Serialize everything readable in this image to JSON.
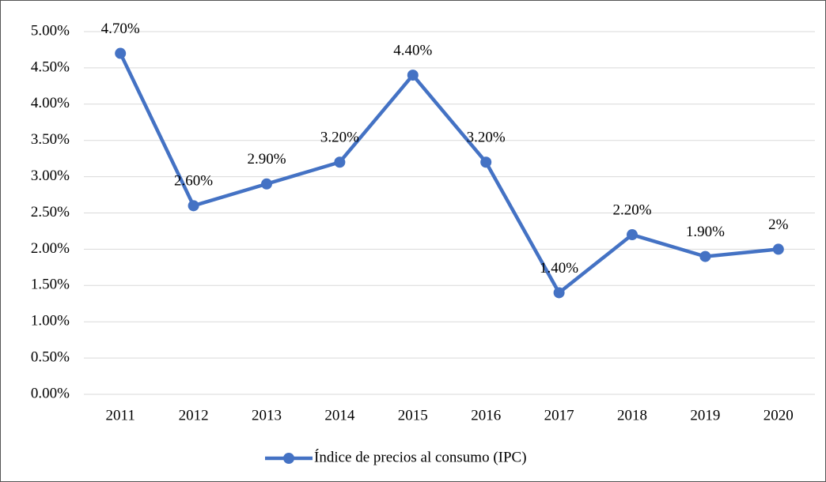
{
  "chart_data": {
    "type": "line",
    "categories": [
      "2011",
      "2012",
      "2013",
      "2014",
      "2015",
      "2016",
      "2017",
      "2018",
      "2019",
      "2020"
    ],
    "series": [
      {
        "name": "Índice de precios al consumo (IPC)",
        "color": "#4472c4",
        "values": [
          4.7,
          2.6,
          2.9,
          3.2,
          4.4,
          3.2,
          1.4,
          2.2,
          1.9,
          2
        ],
        "value_labels": [
          "4.70%",
          "2.60%",
          "2.90%",
          "3.20%",
          "4.40%",
          "3.20%",
          "1.40%",
          "2.20%",
          "1.90%",
          "2%"
        ]
      }
    ],
    "ylim": [
      0,
      5
    ],
    "yticks": [
      {
        "value": 0,
        "label": "0.00%"
      },
      {
        "value": 0.5,
        "label": "0.50%"
      },
      {
        "value": 1,
        "label": "1.00%"
      },
      {
        "value": 1.5,
        "label": "1.50%"
      },
      {
        "value": 2,
        "label": "2.00%"
      },
      {
        "value": 2.5,
        "label": "2.50%"
      },
      {
        "value": 3,
        "label": "3.00%"
      },
      {
        "value": 3.5,
        "label": "3.50%"
      },
      {
        "value": 4,
        "label": "4.00%"
      },
      {
        "value": 4.5,
        "label": "4.50%"
      },
      {
        "value": 5,
        "label": "5.00%"
      }
    ],
    "grid": true,
    "legend": "bottom"
  }
}
